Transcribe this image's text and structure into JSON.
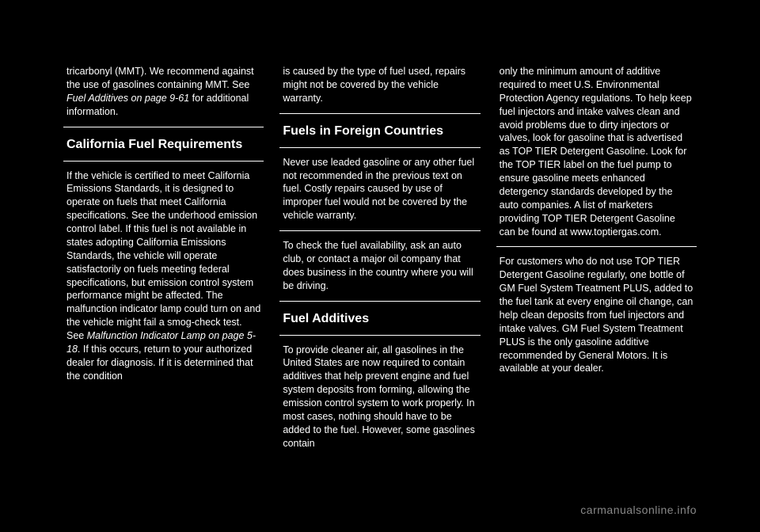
{
  "col1": {
    "p1_a": "tricarbonyl (MMT). We recommend against the use of gasolines containing MMT. See ",
    "p1_b": "Fuel Additives on page 9-61",
    "p1_c": " for additional information.",
    "h1": "California Fuel Requirements",
    "p2_a": "If the vehicle is certified to meet California Emissions Standards, it is designed to operate on fuels that meet California specifications. See the underhood emission control label. If this fuel is not available in states adopting California Emissions Standards, the vehicle will operate satisfactorily on fuels meeting federal specifications, but emission control system performance might be affected. The malfunction indicator lamp could turn on and the vehicle might fail a smog-check test. See ",
    "p2_b": "Malfunction Indicator Lamp on page 5-18",
    "p2_c": ". If this occurs, return to your authorized dealer for diagnosis. If it is determined that the condition"
  },
  "col2": {
    "p1": "is caused by the type of fuel used, repairs might not be covered by the vehicle warranty.",
    "h1": "Fuels in Foreign Countries",
    "p2": "Never use leaded gasoline or any other fuel not recommended in the previous text on fuel. Costly repairs caused by use of improper fuel would not be covered by the vehicle warranty.",
    "p3": "To check the fuel availability, ask an auto club, or contact a major oil company that does business in the country where you will be driving.",
    "h2": "Fuel Additives",
    "p4": "To provide cleaner air, all gasolines in the United States are now required to contain additives that help prevent engine and fuel system deposits from forming, allowing the emission control system to work properly. In most cases, nothing should have to be added to the fuel. However, some gasolines contain"
  },
  "col3": {
    "p1": "only the minimum amount of additive required to meet U.S. Environmental Protection Agency regulations. To help keep fuel injectors and intake valves clean and avoid problems due to dirty injectors or valves, look for gasoline that is advertised as TOP TIER Detergent Gasoline. Look for the TOP TIER label on the fuel pump to ensure gasoline meets enhanced detergency standards developed by the auto companies. A list of marketers providing TOP TIER Detergent Gasoline can be found at www.toptiergas.com.",
    "p2": "For customers who do not use TOP TIER Detergent Gasoline regularly, one bottle of GM Fuel System Treatment PLUS, added to the fuel tank at every engine oil change, can help clean deposits from fuel injectors and intake valves. GM Fuel System Treatment PLUS is the only gasoline additive recommended by General Motors. It is available at your dealer."
  },
  "watermark": "carmanualsonline.info"
}
